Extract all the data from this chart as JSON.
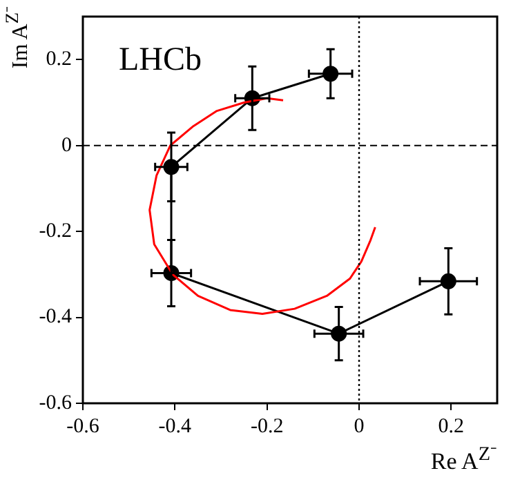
{
  "chart_data": {
    "type": "line",
    "xlabel": "Re A$^{Z⁻}$",
    "ylabel": "Im A$^{Z⁻}$",
    "annotations": [
      "LHCb"
    ],
    "xlim": [
      -0.6,
      0.3
    ],
    "xticks": [
      -0.6,
      -0.4,
      -0.2,
      0,
      0.2
    ],
    "ylim": [
      -0.6,
      0.3
    ],
    "yticks": [
      -0.6,
      -0.4,
      -0.2,
      0,
      0.2
    ],
    "grid": false,
    "legend": false,
    "ref_lines": [
      {
        "axis": "x",
        "value": 0,
        "line_style": "dotted",
        "color": "#000000"
      },
      {
        "axis": "y",
        "value": 0,
        "line_style": "dashed",
        "color": "#000000"
      }
    ],
    "series": [
      {
        "type": "line",
        "color": "#ff0000",
        "marker": "none",
        "line_style": "solid",
        "x": [
          -0.165,
          -0.2,
          -0.25,
          -0.31,
          -0.36,
          -0.41,
          -0.44,
          -0.455,
          -0.445,
          -0.405,
          -0.35,
          -0.28,
          -0.21,
          -0.14,
          -0.07,
          -0.02,
          0.005,
          0.025,
          0.035
        ],
        "values": [
          0.105,
          0.11,
          0.1,
          0.08,
          0.045,
          0.0,
          -0.07,
          -0.15,
          -0.23,
          -0.3,
          -0.35,
          -0.383,
          -0.392,
          -0.38,
          -0.35,
          -0.31,
          -0.27,
          -0.22,
          -0.19
        ]
      },
      {
        "color": "#000000",
        "marker": "circle",
        "line_style": "solid",
        "x": [
          -0.062,
          -0.232,
          -0.408,
          -0.408,
          -0.044,
          0.194
        ],
        "values": [
          0.167,
          0.11,
          -0.05,
          -0.297,
          -0.438,
          -0.316
        ],
        "errors": [
          0.057,
          0.074,
          0.08,
          0.077,
          0.062,
          0.077
        ],
        "xerrors": [
          0.047,
          0.037,
          0.035,
          0.043,
          0.053,
          0.062
        ]
      }
    ]
  }
}
